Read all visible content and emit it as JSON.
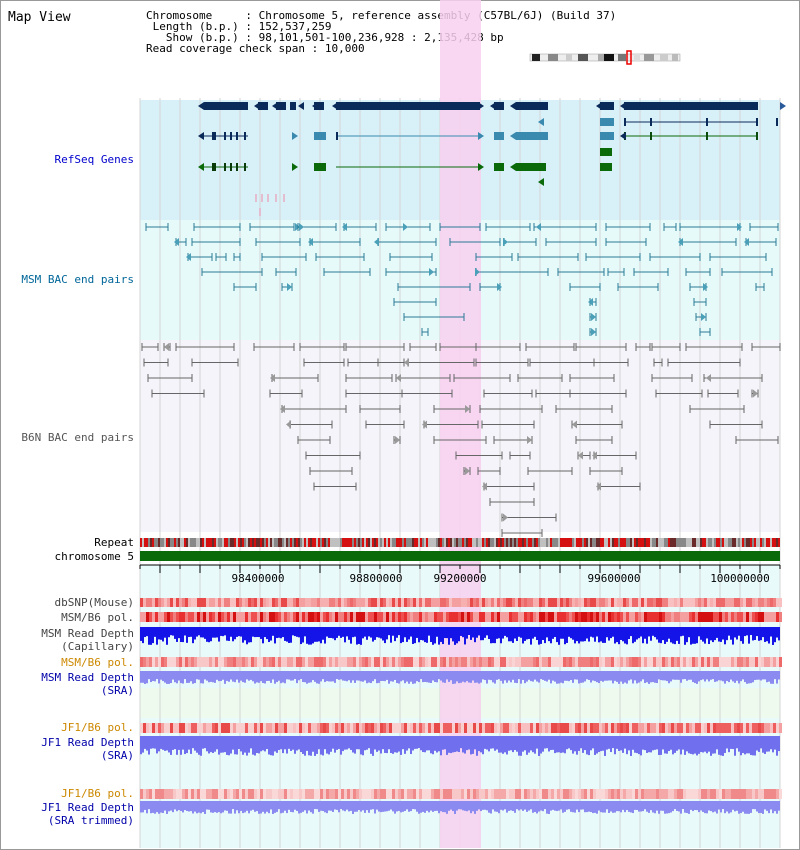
{
  "page": {
    "title": "Map View",
    "info": {
      "chromosome_label": "Chromosome",
      "chromosome_value": "Chromosome 5, reference assembly (C57BL/6J) (Build 37)",
      "length_label": "Length (b.p.)",
      "length_value": "152,537,259",
      "show_label": "Show (b.p.)",
      "show_value": "98,101,501-100,236,928 : 2,135,428 bp",
      "coverage_label": "Read coverage check span",
      "coverage_value": "10,000"
    }
  },
  "tracks": {
    "refseq": "RefSeq Genes",
    "msm_bac": "MSM BAC end pairs",
    "b6n_bac": "B6N BAC end pairs",
    "repeat": "Repeat",
    "chromosome": "chromosome 5",
    "dbsnp": "dbSNP(Mouse)",
    "msm_b6_pol_1": "MSM/B6 pol.",
    "msm_depth_cap_1": "MSM Read Depth",
    "msm_depth_cap_2": "(Capillary)",
    "msm_b6_pol_2": "MSM/B6 pol.",
    "msm_depth_sra_1": "MSM Read Depth",
    "msm_depth_sra_2": "(SRA)",
    "jf1_b6_pol_1": "JF1/B6 pol.",
    "jf1_depth_sra_1": "JF1 Read Depth",
    "jf1_depth_sra_2": "(SRA)",
    "jf1_b6_pol_2": "JF1/B6 pol.",
    "jf1_depth_trim_1": "JF1 Read Depth",
    "jf1_depth_trim_2": "(SRA trimmed)"
  },
  "axis": {
    "ticks": [
      "98400000",
      "98800000",
      "99200000",
      "99600000",
      "100000000"
    ]
  },
  "colors": {
    "refseq_label": "#0000cc",
    "msm_label": "#006699",
    "b6n_label": "#555555",
    "orange_label": "#cc8800",
    "blue_label": "#0000aa",
    "highlight": "#f8d0f0",
    "refseq_bg": "#d8f0f8",
    "msm_bg": "#e6fafa"
  }
}
